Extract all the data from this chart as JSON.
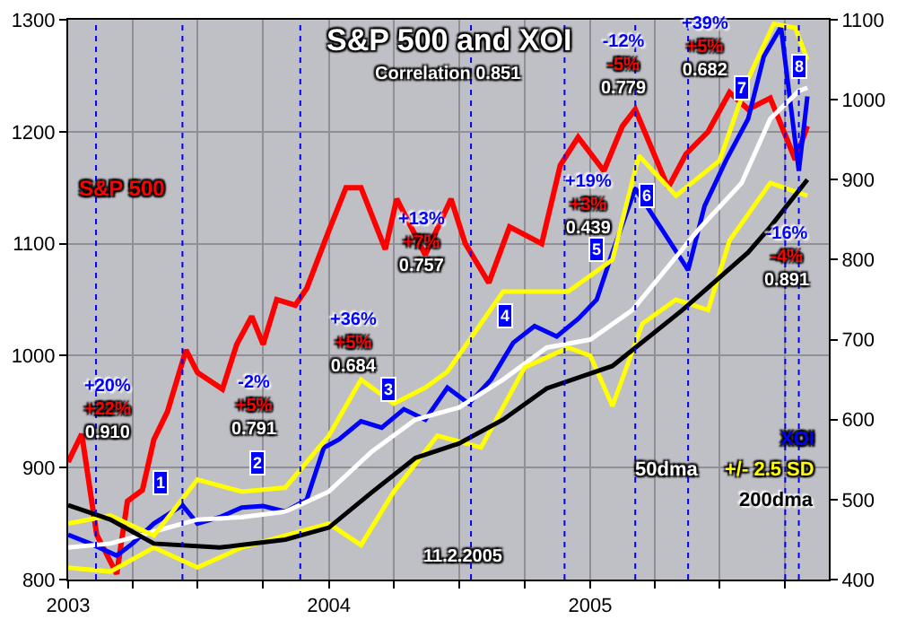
{
  "chart_data": {
    "type": "line",
    "title": "S&P 500 and XOI",
    "subtitle": "Correlation 0.851",
    "xlim": [
      "2003-01-01",
      "2005-12-01"
    ],
    "xticks": [
      {
        "value": "2003-01-01",
        "label": "2003"
      },
      {
        "value": "2003-04-01",
        "label": null
      },
      {
        "value": "2003-07-01",
        "label": null
      },
      {
        "value": "2003-10-01",
        "label": null
      },
      {
        "value": "2004-01-01",
        "label": "2004"
      },
      {
        "value": "2004-04-01",
        "label": null
      },
      {
        "value": "2004-07-01",
        "label": null
      },
      {
        "value": "2004-10-01",
        "label": null
      },
      {
        "value": "2005-01-01",
        "label": "2005"
      },
      {
        "value": "2005-04-01",
        "label": null
      },
      {
        "value": "2005-07-01",
        "label": null
      },
      {
        "value": "2005-10-01",
        "label": null
      }
    ],
    "ylim": [
      800,
      1300
    ],
    "yticks": [
      800,
      900,
      1000,
      1100,
      1200,
      1300
    ],
    "y2lim": [
      400,
      1100
    ],
    "y2ticks": [
      400,
      500,
      600,
      700,
      800,
      900,
      1000,
      1100
    ],
    "grid": true,
    "legend": false,
    "marker": "none",
    "line_style": "solid",
    "series": [
      {
        "name": "S&P 500",
        "color": "#ff0000",
        "x": [
          "2003-01-01",
          "2003-01-20",
          "2003-02-10",
          "2003-03-10",
          "2003-03-25",
          "2003-04-15",
          "2003-05-01",
          "2003-05-20",
          "2003-06-15",
          "2003-07-01",
          "2003-08-05",
          "2003-08-25",
          "2003-09-15",
          "2003-10-01",
          "2003-10-20",
          "2003-11-15",
          "2003-12-01",
          "2003-12-31",
          "2004-01-25",
          "2004-02-15",
          "2004-03-20",
          "2004-04-05",
          "2004-05-15",
          "2004-06-20",
          "2004-07-10",
          "2004-08-12",
          "2004-09-10",
          "2004-10-25",
          "2004-11-20",
          "2004-12-15",
          "2005-01-20",
          "2005-02-15",
          "2005-03-05",
          "2005-04-20",
          "2005-05-15",
          "2005-06-15",
          "2005-07-15",
          "2005-08-10",
          "2005-09-10",
          "2005-10-15",
          "2005-11-01"
        ],
        "values": [
          905,
          930,
          840,
          805,
          870,
          880,
          925,
          950,
          1005,
          985,
          970,
          1010,
          1035,
          1010,
          1050,
          1045,
          1060,
          1110,
          1150,
          1150,
          1095,
          1140,
          1090,
          1140,
          1100,
          1065,
          1115,
          1100,
          1170,
          1195,
          1165,
          1205,
          1220,
          1150,
          1180,
          1200,
          1235,
          1220,
          1230,
          1175,
          1205
        ]
      },
      {
        "name": "XOI",
        "color": "#0000ff",
        "axis": "y2",
        "x": [
          "2003-01-01",
          "2003-02-01",
          "2003-03-10",
          "2003-04-01",
          "2003-05-01",
          "2003-06-10",
          "2003-07-01",
          "2003-08-01",
          "2003-09-01",
          "2003-10-01",
          "2003-11-01",
          "2003-12-01",
          "2003-12-25",
          "2004-01-15",
          "2004-02-15",
          "2004-03-15",
          "2004-04-15",
          "2004-05-15",
          "2004-06-15",
          "2004-07-15",
          "2004-08-15",
          "2004-09-15",
          "2004-10-15",
          "2004-11-15",
          "2004-12-15",
          "2005-01-10",
          "2005-02-01",
          "2005-03-05",
          "2005-04-01",
          "2005-05-18",
          "2005-06-10",
          "2005-07-10",
          "2005-08-10",
          "2005-09-01",
          "2005-09-25",
          "2005-10-20",
          "2005-11-01"
        ],
        "values": [
          456,
          445,
          430,
          445,
          470,
          493,
          470,
          478,
          490,
          492,
          485,
          500,
          565,
          575,
          598,
          590,
          613,
          600,
          640,
          620,
          650,
          696,
          717,
          704,
          726,
          750,
          809,
          889,
          852,
          787,
          867,
          924,
          976,
          1054,
          1091,
          911,
          1004
        ]
      },
      {
        "name": "50dma",
        "color": "#ffffff",
        "axis": "y2",
        "x": [
          "2003-01-01",
          "2003-03-01",
          "2003-05-01",
          "2003-07-01",
          "2003-09-01",
          "2003-11-01",
          "2004-01-01",
          "2004-03-01",
          "2004-05-01",
          "2004-07-01",
          "2004-09-01",
          "2004-11-01",
          "2005-01-01",
          "2005-03-01",
          "2005-06-01",
          "2005-08-01",
          "2005-09-10",
          "2005-10-20",
          "2005-11-01"
        ],
        "values": [
          440,
          445,
          460,
          475,
          478,
          485,
          510,
          560,
          600,
          615,
          650,
          690,
          700,
          737,
          837,
          896,
          976,
          1011,
          1015
        ]
      },
      {
        "name": "+/- 2.5 SD",
        "color": "#ffff00",
        "axis": "y2",
        "x": [
          "2003-01-01",
          "2003-03-01",
          "2003-05-01",
          "2003-07-01",
          "2003-09-01",
          "2003-11-01",
          "2004-01-01",
          "2004-02-15",
          "2004-04-01",
          "2004-05-15",
          "2004-06-15",
          "2004-09-01",
          "2004-12-01",
          "2005-02-01",
          "2005-03-10",
          "2005-05-01",
          "2005-07-01",
          "2005-08-10",
          "2005-09-15",
          "2005-10-15",
          "2005-11-01"
        ],
        "values": [
          470,
          480,
          455,
          525,
          510,
          515,
          580,
          650,
          620,
          640,
          660,
          760,
          760,
          800,
          930,
          880,
          924,
          1026,
          1095,
          1090,
          1050
        ]
      },
      {
        "color": "#ffff00",
        "axis": "y2",
        "x": [
          "2003-01-01",
          "2003-03-01",
          "2003-05-01",
          "2003-07-01",
          "2003-09-01",
          "2003-11-01",
          "2004-01-01",
          "2004-02-15",
          "2004-04-01",
          "2004-06-01",
          "2004-08-01",
          "2004-10-01",
          "2004-12-01",
          "2005-01-01",
          "2005-02-01",
          "2005-03-15",
          "2005-05-01",
          "2005-06-15",
          "2005-07-15",
          "2005-09-10",
          "2005-11-01"
        ],
        "values": [
          415,
          410,
          440,
          415,
          440,
          455,
          470,
          443,
          510,
          580,
          565,
          665,
          690,
          680,
          617,
          720,
          750,
          737,
          824,
          896,
          880
        ]
      },
      {
        "name": "200dma",
        "color": "#000000",
        "axis": "y2",
        "x": [
          "2003-01-01",
          "2003-03-01",
          "2003-05-01",
          "2003-08-01",
          "2003-11-01",
          "2004-01-01",
          "2004-03-01",
          "2004-05-01",
          "2004-07-01",
          "2004-09-01",
          "2004-11-01",
          "2005-02-01",
          "2005-05-10",
          "2005-08-10",
          "2005-09-10",
          "2005-11-01"
        ],
        "values": [
          493,
          475,
          445,
          440,
          450,
          465,
          509,
          552,
          570,
          600,
          639,
          667,
          737,
          809,
          841,
          900
        ]
      }
    ],
    "ref_lines": [
      {
        "axis": "x",
        "value": "2003-02-09",
        "color": "#0000ff",
        "line_style": "dotted"
      },
      {
        "axis": "x",
        "value": "2003-06-10",
        "color": "#0000ff",
        "line_style": "dotted"
      },
      {
        "axis": "x",
        "value": "2003-11-22",
        "color": "#0000ff",
        "line_style": "dotted"
      },
      {
        "axis": "x",
        "value": "2004-07-18",
        "color": "#0000ff",
        "line_style": "dotted"
      },
      {
        "axis": "x",
        "value": "2004-11-26",
        "color": "#0000ff",
        "line_style": "dotted"
      },
      {
        "axis": "x",
        "value": "2005-03-05",
        "color": "#0000ff",
        "line_style": "dotted"
      },
      {
        "axis": "x",
        "value": "2005-05-18",
        "color": "#0000ff",
        "line_style": "dotted"
      },
      {
        "axis": "x",
        "value": "2005-10-01",
        "color": "#0000ff",
        "line_style": "dotted"
      },
      {
        "axis": "x",
        "value": "2005-10-20",
        "color": "#0000ff",
        "line_style": "dotted"
      }
    ],
    "annotations": [
      "+20%\n+22%\n0.910",
      "-2%\n+5%\n0.791",
      "+36%\n+5%\n0.684",
      "+13%\n+7%\n0.757",
      "+19%\n+3%\n0.439",
      "-12%\n-5%\n0.779",
      "+39%\n+5%\n0.682",
      "-16%\n-4%\n0.891",
      "11.2.2005",
      "1",
      "2",
      "3",
      "4",
      "5",
      "6",
      "7",
      "8"
    ]
  }
}
